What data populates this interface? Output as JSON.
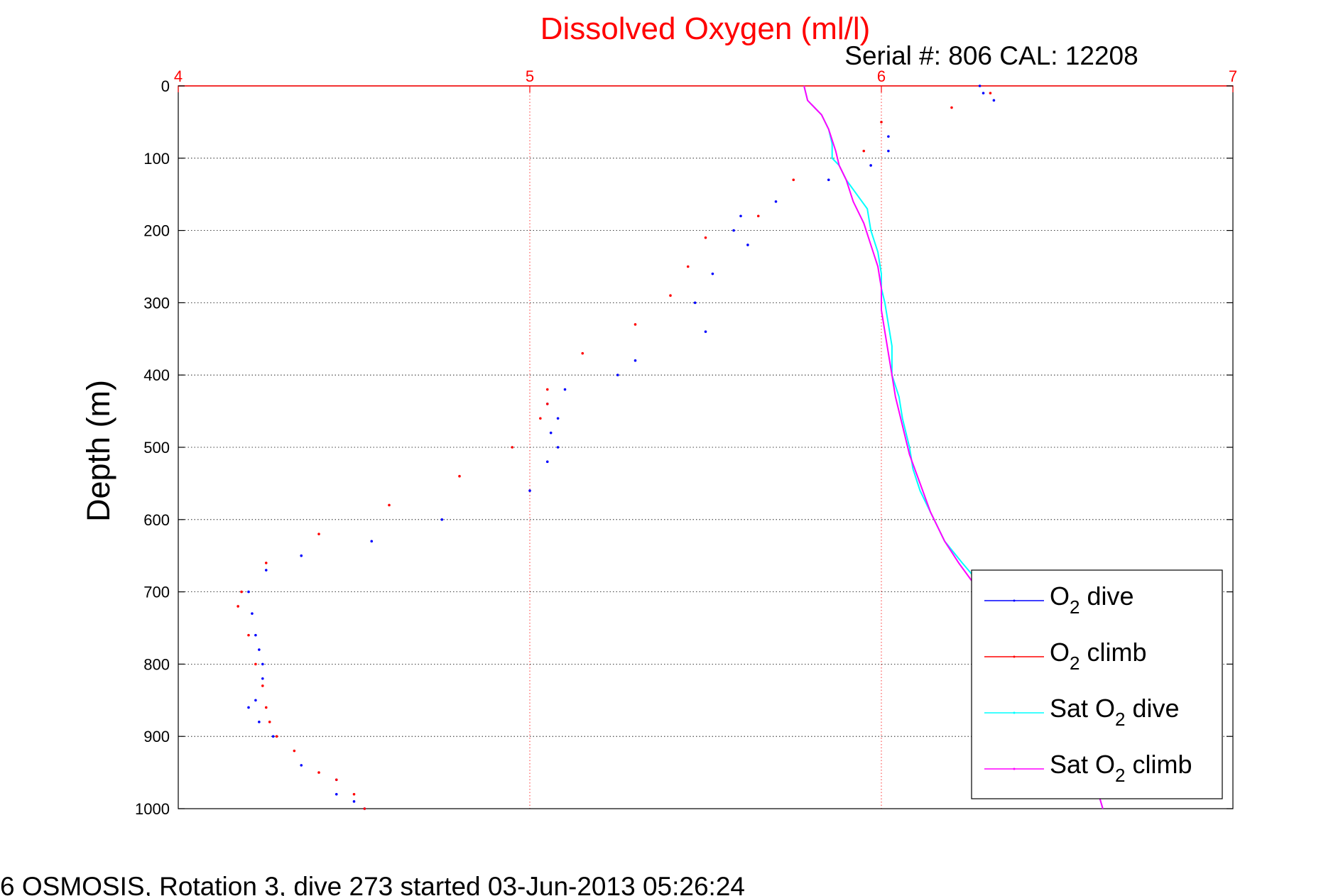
{
  "chart_data": {
    "type": "scatter",
    "title": "Dissolved Oxygen (ml/l)",
    "subtitle": "Serial #: 806  CAL: 12208",
    "ylabel": "Depth (m)",
    "footer": "6 OSMOSIS, Rotation 3, dive 273 started 03-Jun-2013 05:26:24",
    "xlim": [
      4,
      7
    ],
    "ylim": [
      0,
      1000
    ],
    "y_reversed": true,
    "x_axis_position": "top",
    "xticks": [
      4,
      5,
      6,
      7
    ],
    "yticks": [
      0,
      100,
      200,
      300,
      400,
      500,
      600,
      700,
      800,
      900,
      1000
    ],
    "grid": true,
    "legend_position": "lower-right",
    "colors": {
      "title": "#ff0000",
      "x_axis": "#ff0000",
      "dive": "#0000ff",
      "climb": "#ff0000",
      "sat_dive": "#00ffff",
      "sat_climb": "#ff00ff"
    },
    "legend": [
      {
        "pre": "O",
        "sub": "2",
        "post": " dive",
        "color": "#0000ff"
      },
      {
        "pre": "O",
        "sub": "2",
        "post": " climb",
        "color": "#ff0000"
      },
      {
        "pre": "Sat O",
        "sub": "2",
        "post": " dive",
        "color": "#00ffff"
      },
      {
        "pre": "Sat O",
        "sub": "2",
        "post": " climb",
        "color": "#ff00ff"
      }
    ],
    "series": [
      {
        "name": "O2 dive",
        "style": "dots",
        "color": "#0000ff",
        "x": [
          6.28,
          6.29,
          6.32,
          6.02,
          6.02,
          5.97,
          5.85,
          5.7,
          5.6,
          5.58,
          5.62,
          5.52,
          5.47,
          5.5,
          5.3,
          5.25,
          5.1,
          5.05,
          5.08,
          5.06,
          5.08,
          5.05,
          5.0,
          4.75,
          4.55,
          4.35,
          4.25,
          4.2,
          4.21,
          4.22,
          4.23,
          4.24,
          4.24,
          4.22,
          4.2,
          4.23,
          4.27,
          4.35,
          4.45,
          4.45,
          4.5,
          4.53
        ],
        "y": [
          0,
          10,
          20,
          70,
          90,
          110,
          130,
          160,
          180,
          200,
          220,
          260,
          300,
          340,
          380,
          400,
          420,
          440,
          460,
          480,
          500,
          520,
          560,
          600,
          630,
          650,
          670,
          700,
          730,
          760,
          780,
          800,
          820,
          850,
          860,
          880,
          900,
          940,
          960,
          980,
          990,
          1000
        ]
      },
      {
        "name": "O2 climb",
        "style": "dots",
        "color": "#ff0000",
        "x": [
          6.31,
          6.2,
          6.0,
          5.95,
          5.75,
          5.65,
          5.5,
          5.45,
          5.4,
          5.3,
          5.15,
          5.05,
          5.05,
          5.03,
          4.95,
          4.8,
          4.6,
          4.4,
          4.25,
          4.18,
          4.17,
          4.2,
          4.22,
          4.24,
          4.25,
          4.26,
          4.28,
          4.33,
          4.4,
          4.45,
          4.5,
          4.53
        ],
        "y": [
          10,
          30,
          50,
          90,
          130,
          180,
          210,
          250,
          290,
          330,
          370,
          420,
          440,
          460,
          500,
          540,
          580,
          620,
          660,
          700,
          720,
          760,
          800,
          830,
          860,
          880,
          900,
          920,
          950,
          960,
          980,
          1000
        ]
      },
      {
        "name": "Sat O2 dive",
        "style": "line",
        "color": "#00ffff",
        "x": [
          5.78,
          5.79,
          5.81,
          5.83,
          5.85,
          5.86,
          5.86,
          5.88,
          5.9,
          5.93,
          5.96,
          5.97,
          5.99,
          6.0,
          6.0,
          6.01,
          6.02,
          6.03,
          6.03,
          6.05,
          6.06,
          6.08,
          6.09,
          6.11,
          6.13,
          6.15,
          6.18,
          6.23,
          6.3,
          6.34,
          6.4,
          6.5,
          6.55,
          6.6,
          6.63
        ],
        "y": [
          0,
          20,
          30,
          40,
          60,
          80,
          100,
          110,
          130,
          150,
          170,
          200,
          230,
          260,
          280,
          300,
          330,
          360,
          400,
          430,
          460,
          500,
          530,
          560,
          580,
          600,
          630,
          660,
          700,
          740,
          780,
          850,
          900,
          950,
          1000
        ]
      },
      {
        "name": "Sat O2 climb",
        "style": "line",
        "color": "#ff00ff",
        "x": [
          5.78,
          5.79,
          5.81,
          5.83,
          5.85,
          5.87,
          5.88,
          5.9,
          5.92,
          5.95,
          5.97,
          5.99,
          6.0,
          6.0,
          6.01,
          6.02,
          6.03,
          6.04,
          6.06,
          6.08,
          6.11,
          6.14,
          6.18,
          6.22,
          6.28,
          6.33,
          6.4,
          6.5,
          6.55,
          6.6,
          6.63
        ],
        "y": [
          0,
          20,
          30,
          40,
          60,
          90,
          110,
          130,
          160,
          190,
          220,
          250,
          280,
          310,
          340,
          370,
          400,
          430,
          470,
          510,
          550,
          590,
          630,
          660,
          700,
          740,
          780,
          850,
          900,
          950,
          1000
        ]
      }
    ]
  }
}
